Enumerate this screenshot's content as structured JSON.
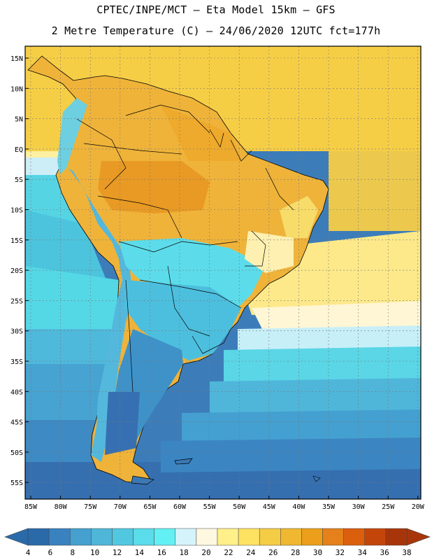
{
  "header": {
    "line1": "CPTEC/INPE/MCT –  Eta Model 15km – GFS",
    "line2": "2 Metre Temperature (C) – 24/06/2020 12UTC fct=177h"
  },
  "axes": {
    "lat_labels": [
      "15N",
      "10N",
      "5N",
      "EQ",
      "5S",
      "10S",
      "15S",
      "20S",
      "25S",
      "30S",
      "35S",
      "40S",
      "45S",
      "50S",
      "55S"
    ],
    "lon_labels": [
      "85W",
      "80W",
      "75W",
      "70W",
      "65W",
      "60W",
      "55W",
      "50W",
      "45W",
      "40W",
      "35W",
      "30W",
      "25W",
      "20W"
    ]
  },
  "colorbar": {
    "labels": [
      "4",
      "6",
      "8",
      "10",
      "12",
      "14",
      "16",
      "18",
      "20",
      "22",
      "24",
      "26",
      "28",
      "30",
      "32",
      "34",
      "36",
      "38"
    ],
    "colors": [
      "#2a6aa8",
      "#3a82bf",
      "#45a0cf",
      "#4fb6d8",
      "#52c8e0",
      "#5adcea",
      "#63f0f5",
      "#d5f3fa",
      "#fff8e0",
      "#fff08a",
      "#fde262",
      "#f5cc45",
      "#efb830",
      "#ec9f1a",
      "#e5801a",
      "#dc5f0e",
      "#c4450a",
      "#a8350a"
    ]
  },
  "map": {
    "land_outline_color": "#000000",
    "ocean_warm": "#f7d24a",
    "ocean_cool": "#3b79b8"
  }
}
